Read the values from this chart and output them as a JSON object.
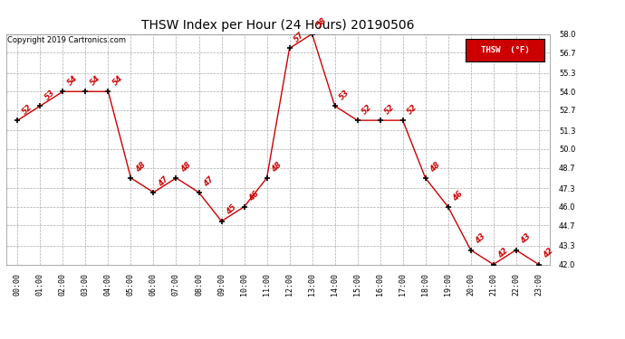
{
  "title": "THSW Index per Hour (24 Hours) 20190506",
  "copyright": "Copyright 2019 Cartronics.com",
  "legend_label": "THSW  (°F)",
  "hours": [
    0,
    1,
    2,
    3,
    4,
    5,
    6,
    7,
    8,
    9,
    10,
    11,
    12,
    13,
    14,
    15,
    16,
    17,
    18,
    19,
    20,
    21,
    22,
    23
  ],
  "values": [
    52,
    53,
    54,
    54,
    54,
    48,
    47,
    48,
    47,
    45,
    46,
    48,
    57,
    58,
    53,
    52,
    52,
    52,
    48,
    46,
    43,
    42,
    43,
    42
  ],
  "ylim_min": 42.0,
  "ylim_max": 58.0,
  "yticks": [
    42.0,
    43.3,
    44.7,
    46.0,
    47.3,
    48.7,
    50.0,
    51.3,
    52.7,
    54.0,
    55.3,
    56.7,
    58.0
  ],
  "line_color": "#cc0000",
  "marker_color": "#000000",
  "label_color": "#cc0000",
  "background_color": "#ffffff",
  "grid_color": "#aaaaaa",
  "title_fontsize": 10,
  "copyright_fontsize": 6,
  "label_fontsize": 6,
  "tick_fontsize": 6,
  "legend_bg": "#cc0000",
  "legend_text_color": "#ffffff"
}
